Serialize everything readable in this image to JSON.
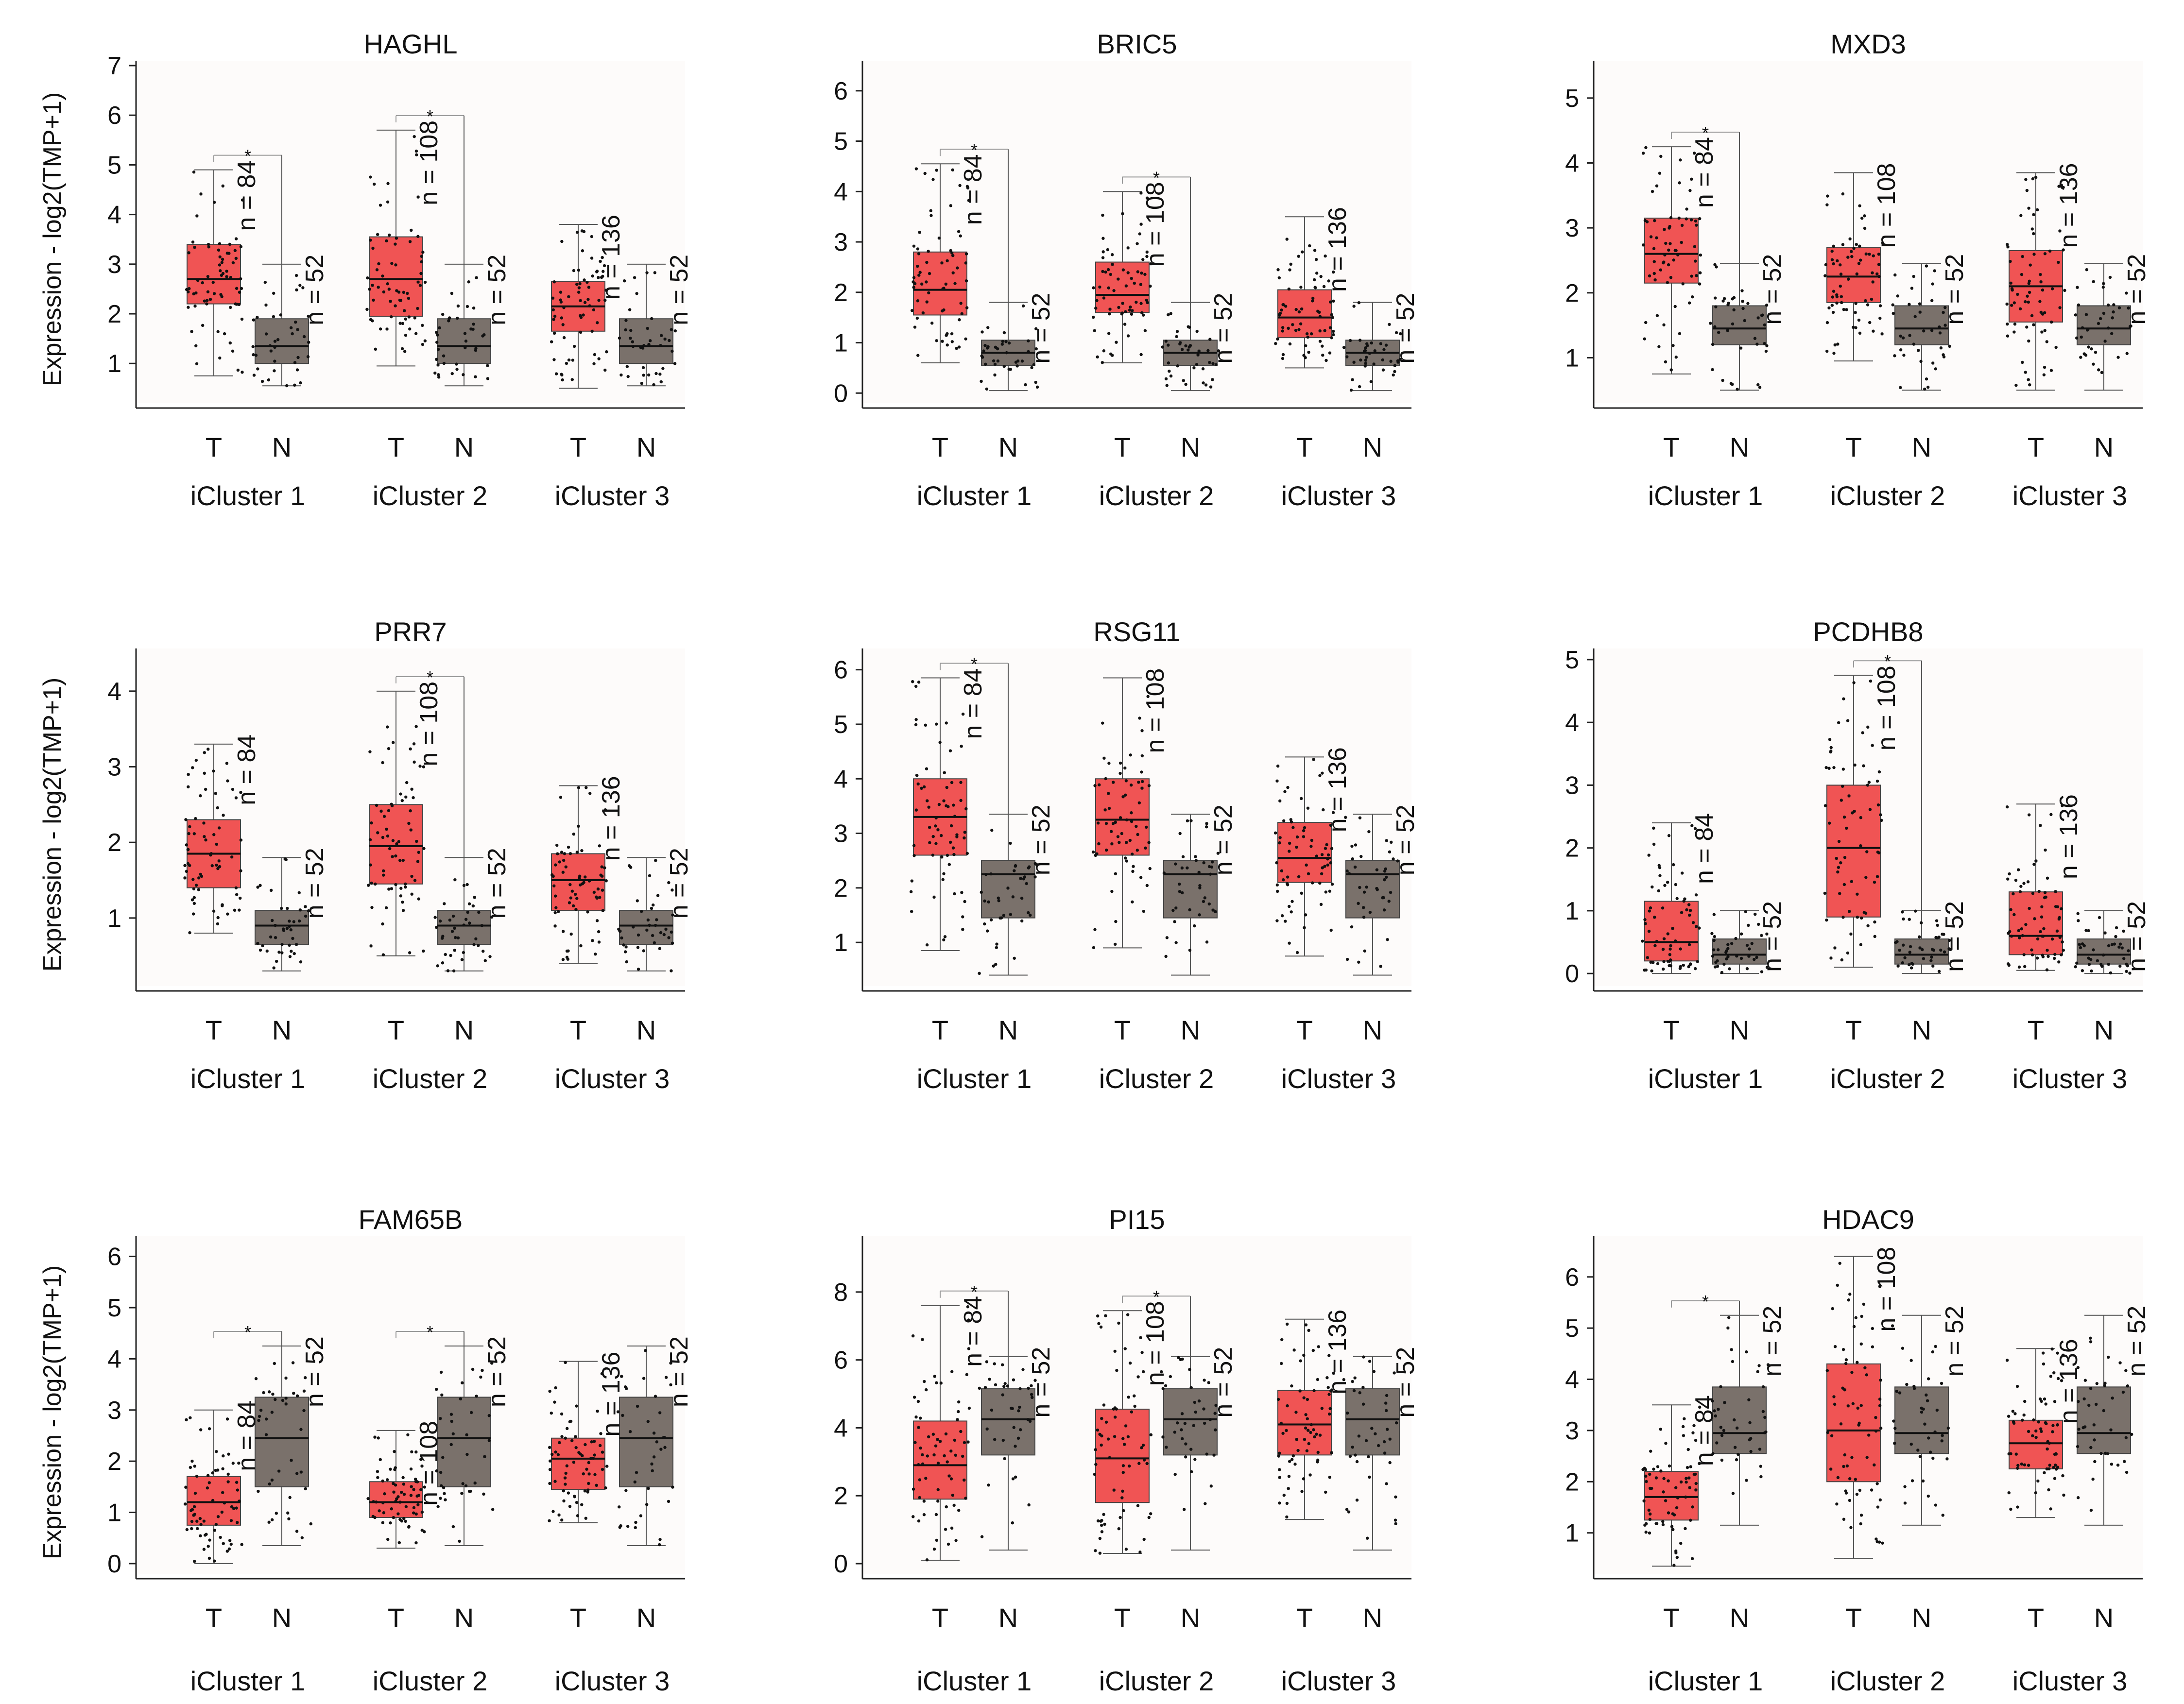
{
  "figure": {
    "ylabel": "Expression - log2(TMP+1)",
    "tick_labels": [
      "T",
      "N"
    ],
    "groups": [
      "iCluster 1",
      "iCluster 2",
      "iCluster 3"
    ],
    "colors": {
      "tumor": "#f05454",
      "normal": "#7a716b",
      "sig": "#e8333a",
      "axis": "#222222"
    }
  },
  "chart_data": [
    {
      "type": "box",
      "title": "HAGHL",
      "ylim": [
        0.2,
        7
      ],
      "yticks": [
        1,
        2,
        3,
        4,
        5,
        6,
        7
      ],
      "groups": [
        "iCluster 1",
        "iCluster 2",
        "iCluster 3"
      ],
      "tumor": [
        {
          "q1": 2.2,
          "med": 2.7,
          "q3": 3.4,
          "lo": 0.75,
          "hi": 4.9,
          "n": "n = 84",
          "sig": true
        },
        {
          "q1": 1.95,
          "med": 2.7,
          "q3": 3.55,
          "lo": 0.95,
          "hi": 5.7,
          "n": "n = 108",
          "sig": true
        },
        {
          "q1": 1.65,
          "med": 2.15,
          "q3": 2.65,
          "lo": 0.5,
          "hi": 3.8,
          "n": "n = 136",
          "sig": false
        }
      ],
      "normal": [
        {
          "q1": 1.0,
          "med": 1.35,
          "q3": 1.9,
          "lo": 0.55,
          "hi": 3.0,
          "n": "n = 52"
        },
        {
          "q1": 1.0,
          "med": 1.35,
          "q3": 1.9,
          "lo": 0.55,
          "hi": 3.0,
          "n": "n = 52"
        },
        {
          "q1": 1.0,
          "med": 1.35,
          "q3": 1.9,
          "lo": 0.55,
          "hi": 3.0,
          "n": "n = 52"
        }
      ]
    },
    {
      "type": "box",
      "title": "BRIC5",
      "ylim": [
        -0.2,
        6.5
      ],
      "yticks": [
        0,
        1,
        2,
        3,
        4,
        5,
        6
      ],
      "groups": [
        "iCluster 1",
        "iCluster 2",
        "iCluster 3"
      ],
      "tumor": [
        {
          "q1": 1.55,
          "med": 2.05,
          "q3": 2.8,
          "lo": 0.6,
          "hi": 4.55,
          "n": "n = 84",
          "sig": true
        },
        {
          "q1": 1.6,
          "med": 1.95,
          "q3": 2.6,
          "lo": 0.6,
          "hi": 4.0,
          "n": "n = 108",
          "sig": true
        },
        {
          "q1": 1.1,
          "med": 1.5,
          "q3": 2.05,
          "lo": 0.5,
          "hi": 3.5,
          "n": "n = 136",
          "sig": false
        }
      ],
      "normal": [
        {
          "q1": 0.55,
          "med": 0.8,
          "q3": 1.05,
          "lo": 0.05,
          "hi": 1.8,
          "n": "n = 52"
        },
        {
          "q1": 0.55,
          "med": 0.8,
          "q3": 1.05,
          "lo": 0.05,
          "hi": 1.8,
          "n": "n = 52"
        },
        {
          "q1": 0.55,
          "med": 0.8,
          "q3": 1.05,
          "lo": 0.05,
          "hi": 1.8,
          "n": "n = 52"
        }
      ]
    },
    {
      "type": "box",
      "title": "MXD3",
      "ylim": [
        0.3,
        5.5
      ],
      "yticks": [
        1,
        2,
        3,
        4,
        5
      ],
      "groups": [
        "iCluster 1",
        "iCluster 2",
        "iCluster 3"
      ],
      "tumor": [
        {
          "q1": 2.15,
          "med": 2.6,
          "q3": 3.15,
          "lo": 0.75,
          "hi": 4.25,
          "n": "n = 84",
          "sig": true
        },
        {
          "q1": 1.85,
          "med": 2.25,
          "q3": 2.7,
          "lo": 0.95,
          "hi": 3.85,
          "n": "n = 108",
          "sig": false
        },
        {
          "q1": 1.55,
          "med": 2.1,
          "q3": 2.65,
          "lo": 0.5,
          "hi": 3.85,
          "n": "n = 136",
          "sig": false
        }
      ],
      "normal": [
        {
          "q1": 1.2,
          "med": 1.45,
          "q3": 1.8,
          "lo": 0.5,
          "hi": 2.45,
          "n": "n = 52"
        },
        {
          "q1": 1.2,
          "med": 1.45,
          "q3": 1.8,
          "lo": 0.5,
          "hi": 2.45,
          "n": "n = 52"
        },
        {
          "q1": 1.2,
          "med": 1.45,
          "q3": 1.8,
          "lo": 0.5,
          "hi": 2.45,
          "n": "n = 52"
        }
      ]
    },
    {
      "type": "box",
      "title": "PRR7",
      "ylim": [
        0.1,
        4.5
      ],
      "yticks": [
        1,
        2,
        3,
        4
      ],
      "groups": [
        "iCluster 1",
        "iCluster 2",
        "iCluster 3"
      ],
      "tumor": [
        {
          "q1": 1.4,
          "med": 1.85,
          "q3": 2.3,
          "lo": 0.8,
          "hi": 3.3,
          "n": "n = 84",
          "sig": false
        },
        {
          "q1": 1.45,
          "med": 1.95,
          "q3": 2.5,
          "lo": 0.5,
          "hi": 4.0,
          "n": "n = 108",
          "sig": true
        },
        {
          "q1": 1.1,
          "med": 1.5,
          "q3": 1.85,
          "lo": 0.4,
          "hi": 2.75,
          "n": "n = 136",
          "sig": false
        }
      ],
      "normal": [
        {
          "q1": 0.65,
          "med": 0.9,
          "q3": 1.1,
          "lo": 0.3,
          "hi": 1.8,
          "n": "n = 52"
        },
        {
          "q1": 0.65,
          "med": 0.9,
          "q3": 1.1,
          "lo": 0.3,
          "hi": 1.8,
          "n": "n = 52"
        },
        {
          "q1": 0.65,
          "med": 0.9,
          "q3": 1.1,
          "lo": 0.3,
          "hi": 1.8,
          "n": "n = 52"
        }
      ]
    },
    {
      "type": "box",
      "title": "RSG11",
      "ylim": [
        0.2,
        6.3
      ],
      "yticks": [
        1,
        2,
        3,
        4,
        5,
        6
      ],
      "groups": [
        "iCluster 1",
        "iCluster 2",
        "iCluster 3"
      ],
      "tumor": [
        {
          "q1": 2.6,
          "med": 3.3,
          "q3": 4.0,
          "lo": 0.85,
          "hi": 5.85,
          "n": "n = 84",
          "sig": true
        },
        {
          "q1": 2.6,
          "med": 3.25,
          "q3": 4.0,
          "lo": 0.9,
          "hi": 5.85,
          "n": "n = 108",
          "sig": false
        },
        {
          "q1": 2.1,
          "med": 2.55,
          "q3": 3.2,
          "lo": 0.75,
          "hi": 4.4,
          "n": "n = 136",
          "sig": false
        }
      ],
      "normal": [
        {
          "q1": 1.45,
          "med": 2.25,
          "q3": 2.5,
          "lo": 0.4,
          "hi": 3.35,
          "n": "n = 52"
        },
        {
          "q1": 1.45,
          "med": 2.25,
          "q3": 2.5,
          "lo": 0.4,
          "hi": 3.35,
          "n": "n = 52"
        },
        {
          "q1": 1.45,
          "med": 2.25,
          "q3": 2.5,
          "lo": 0.4,
          "hi": 3.35,
          "n": "n = 52"
        }
      ]
    },
    {
      "type": "box",
      "title": "PCDHB8",
      "ylim": [
        -0.2,
        5.1
      ],
      "yticks": [
        0,
        1,
        2,
        3,
        4,
        5
      ],
      "groups": [
        "iCluster 1",
        "iCluster 2",
        "iCluster 3"
      ],
      "tumor": [
        {
          "q1": 0.2,
          "med": 0.5,
          "q3": 1.15,
          "lo": 0.0,
          "hi": 2.4,
          "n": "n = 84",
          "sig": false
        },
        {
          "q1": 0.9,
          "med": 2.0,
          "q3": 3.0,
          "lo": 0.1,
          "hi": 4.75,
          "n": "n = 108",
          "sig": true
        },
        {
          "q1": 0.3,
          "med": 0.6,
          "q3": 1.3,
          "lo": 0.05,
          "hi": 2.7,
          "n": "n = 136",
          "sig": false
        }
      ],
      "normal": [
        {
          "q1": 0.15,
          "med": 0.3,
          "q3": 0.55,
          "lo": 0.0,
          "hi": 1.0,
          "n": "n = 52"
        },
        {
          "q1": 0.15,
          "med": 0.3,
          "q3": 0.55,
          "lo": 0.0,
          "hi": 1.0,
          "n": "n = 52"
        },
        {
          "q1": 0.15,
          "med": 0.3,
          "q3": 0.55,
          "lo": 0.0,
          "hi": 1.0,
          "n": "n = 52"
        }
      ]
    },
    {
      "type": "box",
      "title": "FAM65B",
      "ylim": [
        -0.2,
        6.3
      ],
      "yticks": [
        0,
        1,
        2,
        3,
        4,
        5,
        6
      ],
      "groups": [
        "iCluster 1",
        "iCluster 2",
        "iCluster 3"
      ],
      "tumor": [
        {
          "q1": 0.75,
          "med": 1.2,
          "q3": 1.7,
          "lo": 0.0,
          "hi": 3.0,
          "n": "n = 84",
          "sig": true
        },
        {
          "q1": 0.9,
          "med": 1.2,
          "q3": 1.6,
          "lo": 0.3,
          "hi": 2.6,
          "n": "n = 108",
          "sig": true
        },
        {
          "q1": 1.45,
          "med": 2.05,
          "q3": 2.45,
          "lo": 0.8,
          "hi": 3.95,
          "n": "n = 136",
          "sig": false
        }
      ],
      "normal": [
        {
          "q1": 1.5,
          "med": 2.45,
          "q3": 3.25,
          "lo": 0.35,
          "hi": 4.25,
          "n": "n = 52"
        },
        {
          "q1": 1.5,
          "med": 2.45,
          "q3": 3.25,
          "lo": 0.35,
          "hi": 4.25,
          "n": "n = 52"
        },
        {
          "q1": 1.5,
          "med": 2.45,
          "q3": 3.25,
          "lo": 0.35,
          "hi": 4.25,
          "n": "n = 52"
        }
      ]
    },
    {
      "type": "box",
      "title": "PI15",
      "ylim": [
        -0.3,
        9.5
      ],
      "yticks": [
        0,
        2,
        4,
        6,
        8
      ],
      "groups": [
        "iCluster 1",
        "iCluster 2",
        "iCluster 3"
      ],
      "tumor": [
        {
          "q1": 1.9,
          "med": 2.9,
          "q3": 4.2,
          "lo": 0.1,
          "hi": 7.6,
          "n": "n = 84",
          "sig": true
        },
        {
          "q1": 1.8,
          "med": 3.1,
          "q3": 4.55,
          "lo": 0.3,
          "hi": 7.45,
          "n": "n = 108",
          "sig": true
        },
        {
          "q1": 3.2,
          "med": 4.1,
          "q3": 5.1,
          "lo": 1.3,
          "hi": 7.2,
          "n": "n = 136",
          "sig": false
        }
      ],
      "normal": [
        {
          "q1": 3.2,
          "med": 4.25,
          "q3": 5.15,
          "lo": 0.4,
          "hi": 6.1,
          "n": "n = 52"
        },
        {
          "q1": 3.2,
          "med": 4.25,
          "q3": 5.15,
          "lo": 0.4,
          "hi": 6.1,
          "n": "n = 52"
        },
        {
          "q1": 3.2,
          "med": 4.25,
          "q3": 5.15,
          "lo": 0.4,
          "hi": 6.1,
          "n": "n = 52"
        }
      ]
    },
    {
      "type": "box",
      "title": "HDAC9",
      "ylim": [
        0.2,
        6.7
      ],
      "yticks": [
        1,
        2,
        3,
        4,
        5,
        6
      ],
      "groups": [
        "iCluster 1",
        "iCluster 2",
        "iCluster 3"
      ],
      "tumor": [
        {
          "q1": 1.25,
          "med": 1.7,
          "q3": 2.2,
          "lo": 0.35,
          "hi": 3.5,
          "n": "n = 84",
          "sig": true
        },
        {
          "q1": 2.0,
          "med": 3.0,
          "q3": 4.3,
          "lo": 0.5,
          "hi": 6.4,
          "n": "n = 108",
          "sig": false
        },
        {
          "q1": 2.25,
          "med": 2.75,
          "q3": 3.2,
          "lo": 1.3,
          "hi": 4.6,
          "n": "n = 136",
          "sig": false
        }
      ],
      "normal": [
        {
          "q1": 2.55,
          "med": 2.95,
          "q3": 3.85,
          "lo": 1.15,
          "hi": 5.25,
          "n": "n = 52"
        },
        {
          "q1": 2.55,
          "med": 2.95,
          "q3": 3.85,
          "lo": 1.15,
          "hi": 5.25,
          "n": "n = 52"
        },
        {
          "q1": 2.55,
          "med": 2.95,
          "q3": 3.85,
          "lo": 1.15,
          "hi": 5.25,
          "n": "n = 52"
        }
      ]
    }
  ]
}
